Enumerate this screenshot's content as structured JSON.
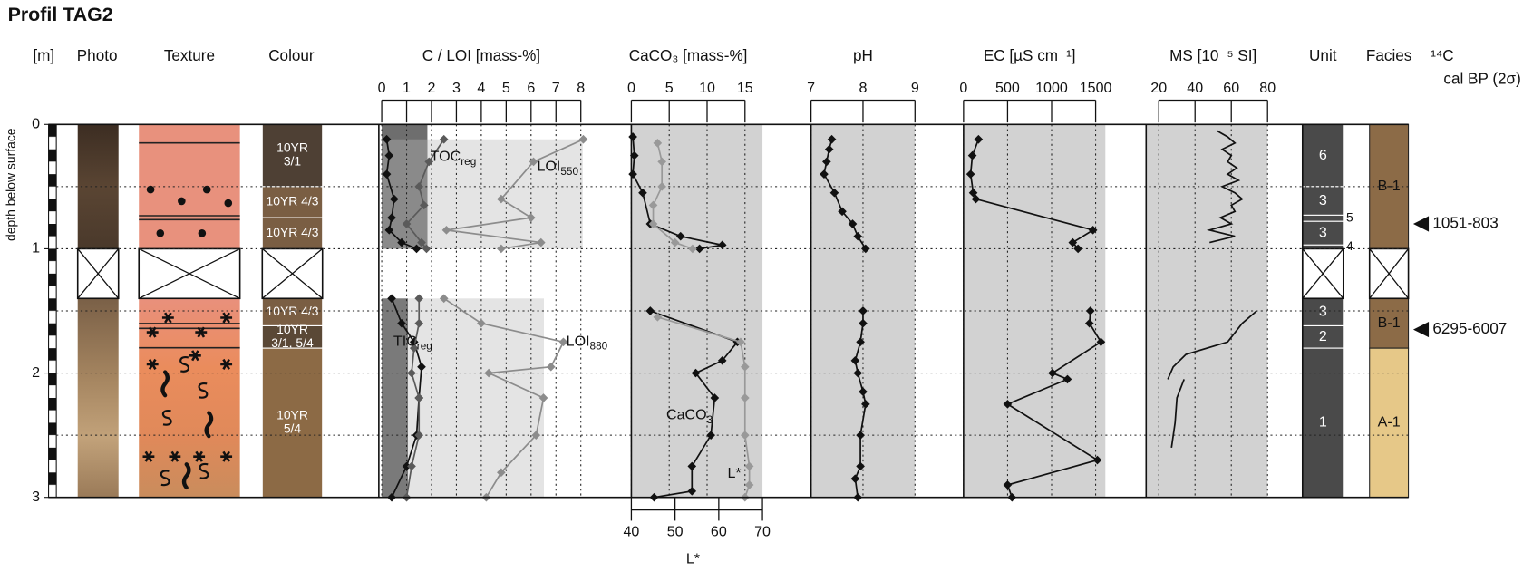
{
  "title": "Profil TAG2",
  "depth_axis": {
    "label": "[m]",
    "title": "depth below surface",
    "ylim": [
      0,
      3
    ],
    "yticks": [
      0,
      1,
      2,
      3
    ]
  },
  "core_gap": [
    1,
    1.4
  ],
  "columns": {
    "photo": "Photo",
    "texture": "Texture",
    "colour": "Colour",
    "unit": "Unit",
    "facies": "Facies",
    "radiocarbon": [
      "¹⁴C",
      "cal BP (2σ)"
    ]
  },
  "colour_layers": [
    {
      "label": [
        "10YR",
        "3/1"
      ],
      "top": 0,
      "bottom": 0.5,
      "color": "#4e4034"
    },
    {
      "label": [
        "10YR 4/3"
      ],
      "top": 0.5,
      "bottom": 0.75,
      "color": "#7a5e43"
    },
    {
      "label": [
        "10YR 4/3"
      ],
      "top": 0.75,
      "bottom": 1,
      "color": "#7a5e43"
    },
    {
      "label": [
        "10YR 4/3"
      ],
      "top": 1.4,
      "bottom": 1.62,
      "color": "#7a5e43"
    },
    {
      "label": [
        "10YR",
        "3/1, 5/4"
      ],
      "top": 1.62,
      "bottom": 1.8,
      "color": "#5a4836"
    },
    {
      "label": [
        "10YR",
        "5/4"
      ],
      "top": 1.8,
      "bottom": 3,
      "color": "#8c6a45"
    }
  ],
  "units": [
    {
      "label": "6",
      "top": 0,
      "bottom": 0.5
    },
    {
      "label": "3",
      "top": 0.5,
      "bottom": 0.73
    },
    {
      "label": "5",
      "top": 0.73,
      "bottom": 0.78
    },
    {
      "label": "3",
      "top": 0.78,
      "bottom": 0.97
    },
    {
      "label": "4",
      "top": 0.97,
      "bottom": 1
    },
    {
      "label": "3",
      "top": 1.4,
      "bottom": 1.62
    },
    {
      "label": "2",
      "top": 1.62,
      "bottom": 1.8
    },
    {
      "label": "1",
      "top": 1.8,
      "bottom": 3
    }
  ],
  "facies": [
    {
      "label": "B-1",
      "top": 0,
      "bottom": 1,
      "color": "#8c6b47"
    },
    {
      "label": "B-1",
      "top": 1.4,
      "bottom": 1.8,
      "color": "#8c6b47"
    },
    {
      "label": "A-1",
      "top": 1.8,
      "bottom": 3,
      "color": "#e6c888"
    }
  ],
  "radiocarbon": [
    {
      "label": "1051-803",
      "depth": 0.8
    },
    {
      "label": "6295-6007",
      "depth": 1.65
    }
  ],
  "chart_data": [
    {
      "type": "line",
      "title": "C / LOI [mass-%]",
      "xlim": [
        0,
        8
      ],
      "xticks": [
        0,
        1,
        2,
        3,
        4,
        5,
        6,
        7,
        8
      ],
      "annotations": [
        {
          "main": "TOC",
          "sub": "reg"
        },
        {
          "main": "LOI",
          "sub": "550"
        },
        {
          "main": "TIC",
          "sub": "reg"
        },
        {
          "main": "LOI",
          "sub": "880"
        }
      ],
      "series": [
        {
          "color": "#111111",
          "marker": "diamond",
          "depth": [
            0.12,
            0.25,
            0.4,
            0.6,
            0.75,
            0.85,
            0.95,
            1.0,
            null,
            1.4,
            1.6,
            1.75,
            1.95,
            2.2,
            2.5,
            2.75,
            3.0
          ],
          "values": [
            0.2,
            0.3,
            0.2,
            0.5,
            0.4,
            0.3,
            0.8,
            1.4,
            null,
            0.4,
            0.8,
            1.3,
            1.6,
            1.5,
            1.4,
            1.0,
            0.4
          ]
        },
        {
          "color": "#5a5a5a",
          "marker": "diamond",
          "depth": [
            0.12,
            0.3,
            0.5,
            0.65,
            0.8,
            0.95,
            1.0,
            null,
            1.4,
            1.6,
            1.8,
            2.0,
            2.2,
            2.5,
            2.75,
            3.0
          ],
          "values": [
            2.5,
            1.9,
            1.5,
            1.7,
            1.0,
            1.6,
            1.8,
            null,
            1.5,
            1.5,
            1.3,
            1.2,
            1.5,
            1.5,
            1.2,
            1.0
          ]
        },
        {
          "color": "#8c8c8c",
          "marker": "diamond",
          "depth": [
            0.12,
            0.3,
            0.6,
            0.75,
            0.85,
            0.95,
            1.0,
            null,
            1.4,
            1.6,
            1.75,
            1.95,
            2.0,
            2.2,
            2.5,
            2.8,
            3.0
          ],
          "values": [
            8.1,
            6.1,
            4.8,
            6.0,
            2.6,
            6.4,
            4.8,
            null,
            2.5,
            4.0,
            7.3,
            6.8,
            4.3,
            6.5,
            6.2,
            4.8,
            4.2
          ]
        }
      ]
    },
    {
      "type": "line",
      "title": "CaCO₃ [mass-%]",
      "xlim": [
        0,
        15
      ],
      "xticks": [
        0,
        5,
        10,
        15
      ],
      "x2lim": [
        40,
        70
      ],
      "x2ticks": [
        40,
        50,
        60,
        70
      ],
      "x2label": "L*",
      "annotations": [
        {
          "main": "CaCO",
          "sub": "3"
        },
        {
          "main": "L*",
          "sub": ""
        }
      ],
      "series": [
        {
          "color": "#111111",
          "marker": "diamond",
          "depth": [
            0.1,
            0.25,
            0.4,
            0.55,
            0.8,
            0.9,
            0.97,
            1.0,
            null,
            1.5,
            1.75,
            1.9,
            2.0,
            2.2,
            2.5,
            2.75,
            2.95,
            3.0
          ],
          "values": [
            0.2,
            0.4,
            0.2,
            1.5,
            2.5,
            6.5,
            12.0,
            9.0,
            null,
            2.5,
            14.0,
            12.0,
            8.5,
            11.0,
            10.5,
            8.0,
            8.0,
            3.0
          ]
        },
        {
          "color": "#999999",
          "marker": "diamond",
          "axis": "x2",
          "depth": [
            0.15,
            0.3,
            0.5,
            0.65,
            0.8,
            0.95,
            1.0,
            null,
            1.55,
            1.75,
            1.95,
            2.2,
            2.5,
            2.75,
            2.9,
            3.0
          ],
          "values": [
            46,
            47,
            47,
            45,
            45,
            50,
            54,
            null,
            46,
            65,
            66,
            66,
            66,
            67,
            67,
            66
          ]
        }
      ]
    },
    {
      "type": "line",
      "title": "pH",
      "xlim": [
        7,
        9
      ],
      "xticks": [
        7,
        8,
        9
      ],
      "annotations": [],
      "series": [
        {
          "color": "#111111",
          "marker": "diamond",
          "depth": [
            0.12,
            0.2,
            0.3,
            0.4,
            0.55,
            0.7,
            0.8,
            0.9,
            1.0,
            null,
            1.5,
            1.6,
            1.75,
            1.9,
            2.0,
            2.15,
            2.25,
            2.5,
            2.75,
            2.85,
            3.0
          ],
          "values": [
            7.4,
            7.35,
            7.3,
            7.25,
            7.45,
            7.6,
            7.8,
            7.9,
            8.05,
            null,
            8.0,
            8.0,
            7.95,
            7.85,
            7.9,
            8.0,
            8.05,
            7.95,
            7.95,
            7.85,
            7.9
          ]
        }
      ]
    },
    {
      "type": "line",
      "title": "EC [µS cm⁻¹]",
      "xlim": [
        0,
        1500
      ],
      "xticks": [
        0,
        500,
        1000,
        1500
      ],
      "annotations": [],
      "series": [
        {
          "color": "#111111",
          "marker": "diamond",
          "depth": [
            0.12,
            0.25,
            0.4,
            0.55,
            0.6,
            0.85,
            0.95,
            1.0,
            null,
            1.5,
            1.6,
            1.75,
            2.0,
            2.05,
            2.25,
            2.7,
            2.9,
            3.0
          ],
          "values": [
            170,
            100,
            80,
            110,
            140,
            1470,
            1240,
            1300,
            null,
            1440,
            1430,
            1560,
            1010,
            1180,
            500,
            1520,
            500,
            550
          ]
        }
      ]
    },
    {
      "type": "line",
      "title": "MS [10⁻⁵ SI]",
      "xlim": [
        20,
        80
      ],
      "xticks": [
        20,
        40,
        60,
        80
      ],
      "annotations": [],
      "series": [
        {
          "color": "#111111",
          "depth": [
            0.05,
            0.1,
            0.15,
            0.2,
            0.25,
            0.3,
            0.35,
            0.4,
            0.45,
            0.5,
            0.55,
            0.6,
            0.65,
            0.7,
            0.75,
            0.8,
            0.85,
            0.9,
            0.95,
            null,
            1.5,
            1.6,
            1.75,
            1.85,
            1.95,
            2.05,
            null,
            2.05,
            2.2,
            2.4,
            2.6
          ],
          "values": [
            52,
            58,
            62,
            55,
            60,
            58,
            63,
            58,
            64,
            55,
            62,
            66,
            60,
            62,
            54,
            60,
            48,
            62,
            48,
            null,
            74,
            66,
            58,
            35,
            28,
            25,
            null,
            34,
            30,
            29,
            27
          ]
        }
      ]
    }
  ]
}
